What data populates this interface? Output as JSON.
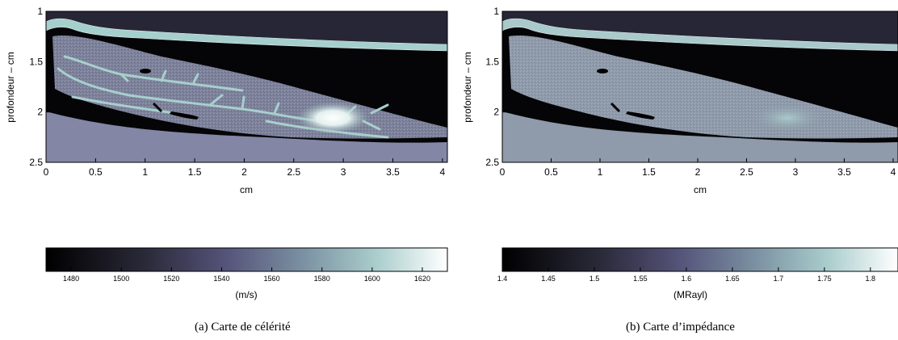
{
  "panels": [
    {
      "caption": "(a)  Carte de célérité",
      "map": {
        "xlabel": "cm",
        "ylabel": "profondeur – cm",
        "xticks": [
          "0",
          "0.5",
          "1",
          "1.5",
          "2",
          "2.5",
          "3",
          "3.5",
          "4"
        ],
        "yticks": [
          "1",
          "1.5",
          "2",
          "2.5"
        ]
      },
      "colorbar": {
        "label": "(m/s)",
        "ticks": [
          "1480",
          "1500",
          "1520",
          "1540",
          "1560",
          "1580",
          "1600",
          "1620"
        ]
      }
    },
    {
      "caption": "(b)  Carte d’impédance",
      "map": {
        "xlabel": "cm",
        "ylabel": "profondeur – cm",
        "xticks": [
          "0",
          "0.5",
          "1",
          "1.5",
          "2",
          "2.5",
          "3",
          "3.5",
          "4"
        ],
        "yticks": [
          "1",
          "1.5",
          "2",
          "2.5"
        ]
      },
      "colorbar": {
        "label": "(MRayl)",
        "ticks": [
          "1.4",
          "1.45",
          "1.5",
          "1.55",
          "1.6",
          "1.65",
          "1.7",
          "1.75",
          "1.8"
        ]
      }
    }
  ],
  "chart_data": [
    {
      "type": "heatmap",
      "title": "",
      "xlabel": "cm",
      "ylabel": "profondeur – cm",
      "xlim": [
        0,
        4.05
      ],
      "ylim": [
        2.5,
        1
      ],
      "xticks": [
        0,
        0.5,
        1,
        1.5,
        2,
        2.5,
        3,
        3.5,
        4
      ],
      "yticks": [
        1,
        1.5,
        2,
        2.5
      ],
      "colorbar": {
        "label": "(m/s)",
        "range": [
          1470,
          1630
        ],
        "ticks": [
          1480,
          1500,
          1520,
          1540,
          1560,
          1580,
          1600,
          1620
        ]
      },
      "regions": [
        {
          "name": "background",
          "value": 1475
        },
        {
          "name": "skin layer",
          "value": 1580
        },
        {
          "name": "lower tissue",
          "value": 1540
        },
        {
          "name": "gland",
          "value": 1555
        },
        {
          "name": "ducts",
          "value": 1585
        },
        {
          "name": "lesion center",
          "value": 1625
        }
      ],
      "lesion_center": {
        "x": 2.8,
        "y": 2.05
      }
    },
    {
      "type": "heatmap",
      "title": "",
      "xlabel": "cm",
      "ylabel": "profondeur – cm",
      "xlim": [
        0,
        4.05
      ],
      "ylim": [
        2.5,
        1
      ],
      "xticks": [
        0,
        0.5,
        1,
        1.5,
        2,
        2.5,
        3,
        3.5,
        4
      ],
      "yticks": [
        1,
        1.5,
        2,
        2.5
      ],
      "colorbar": {
        "label": "(MRayl)",
        "range": [
          1.4,
          1.83
        ],
        "ticks": [
          1.4,
          1.45,
          1.5,
          1.55,
          1.6,
          1.65,
          1.7,
          1.75,
          1.8
        ]
      },
      "regions": [
        {
          "name": "background",
          "value": 1.42
        },
        {
          "name": "skin layer",
          "value": 1.68
        },
        {
          "name": "lower tissue",
          "value": 1.63
        },
        {
          "name": "gland",
          "value": 1.64
        },
        {
          "name": "lesion center",
          "value": 1.71
        }
      ],
      "lesion_center": {
        "x": 2.8,
        "y": 2.05
      }
    }
  ]
}
